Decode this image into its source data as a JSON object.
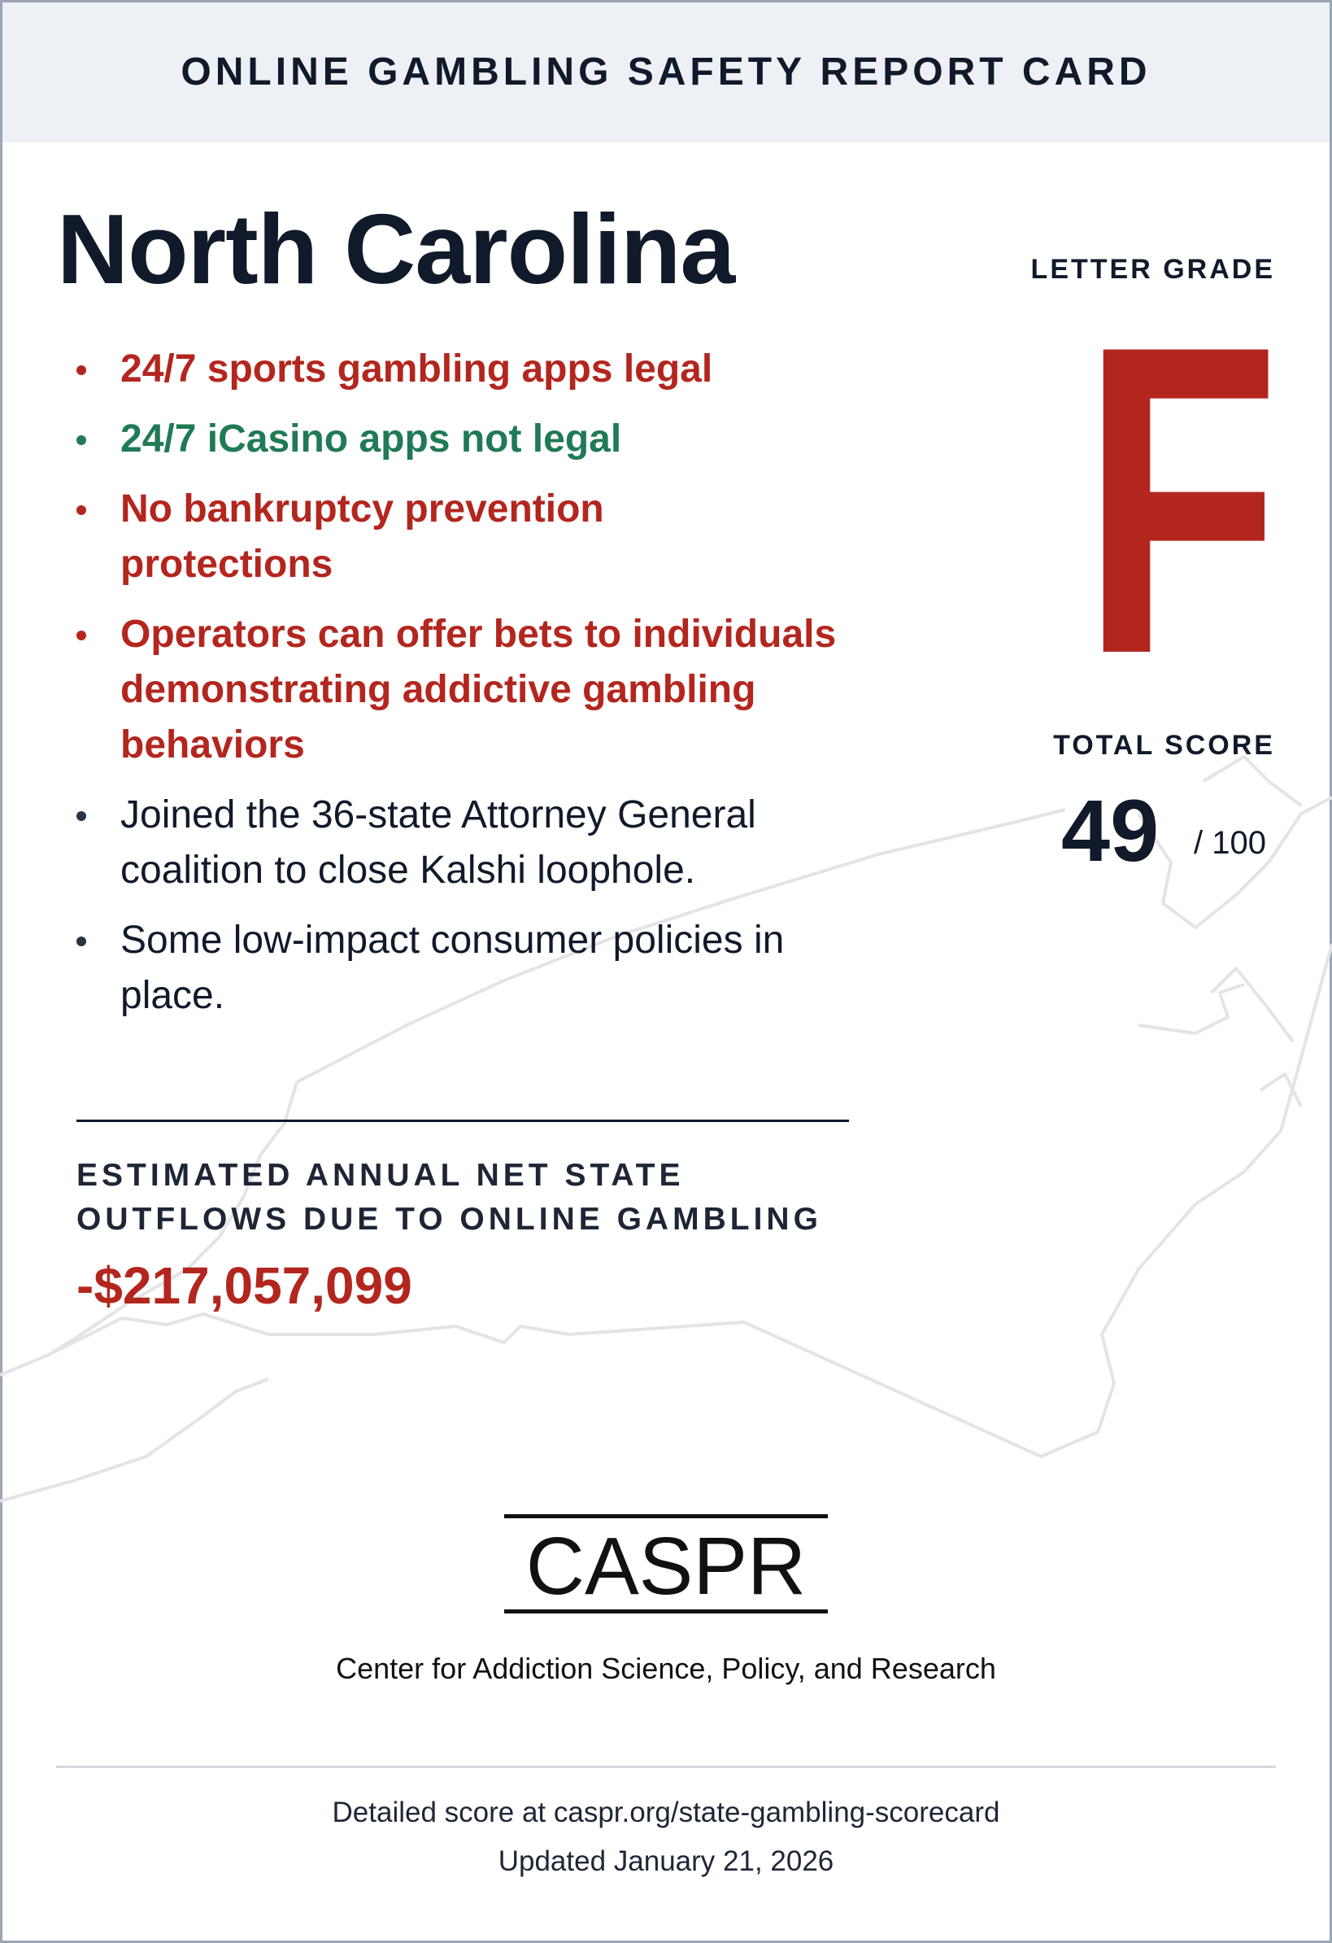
{
  "header": {
    "title": "ONLINE GAMBLING SAFETY REPORT CARD"
  },
  "state": "North Carolina",
  "letter_grade": {
    "label": "LETTER GRADE",
    "value": "F"
  },
  "bullets": [
    {
      "text": "24/7 sports gambling apps legal",
      "status": "bad"
    },
    {
      "text": "24/7 iCasino apps not legal",
      "status": "good"
    },
    {
      "text": "No bankruptcy prevention protections",
      "status": "bad"
    },
    {
      "text": "Operators can offer bets to individuals demonstrating addictive gambling behaviors",
      "status": "bad"
    },
    {
      "text": "Joined the 36-state Attorney General coalition to close Kalshi loophole.",
      "status": "neutral"
    },
    {
      "text": "Some low-impact consumer policies in place.",
      "status": "neutral"
    }
  ],
  "total_score": {
    "label": "TOTAL SCORE",
    "value": "49",
    "max": "/ 100"
  },
  "outflows": {
    "label": "ESTIMATED ANNUAL NET STATE OUTFLOWS DUE TO ONLINE GAMBLING",
    "value": "-$217,057,099"
  },
  "logo": {
    "text": "CASPR",
    "org": "Center for Addiction Science, Policy, and Research"
  },
  "footer": {
    "detail": "Detailed score at caspr.org/state-gambling-scorecard",
    "updated": "Updated January 21, 2026"
  },
  "colors": {
    "bad": "#b3261e",
    "good": "#1f7a55",
    "neutral": "#111a2b",
    "header_bg": "#edf1f6"
  }
}
